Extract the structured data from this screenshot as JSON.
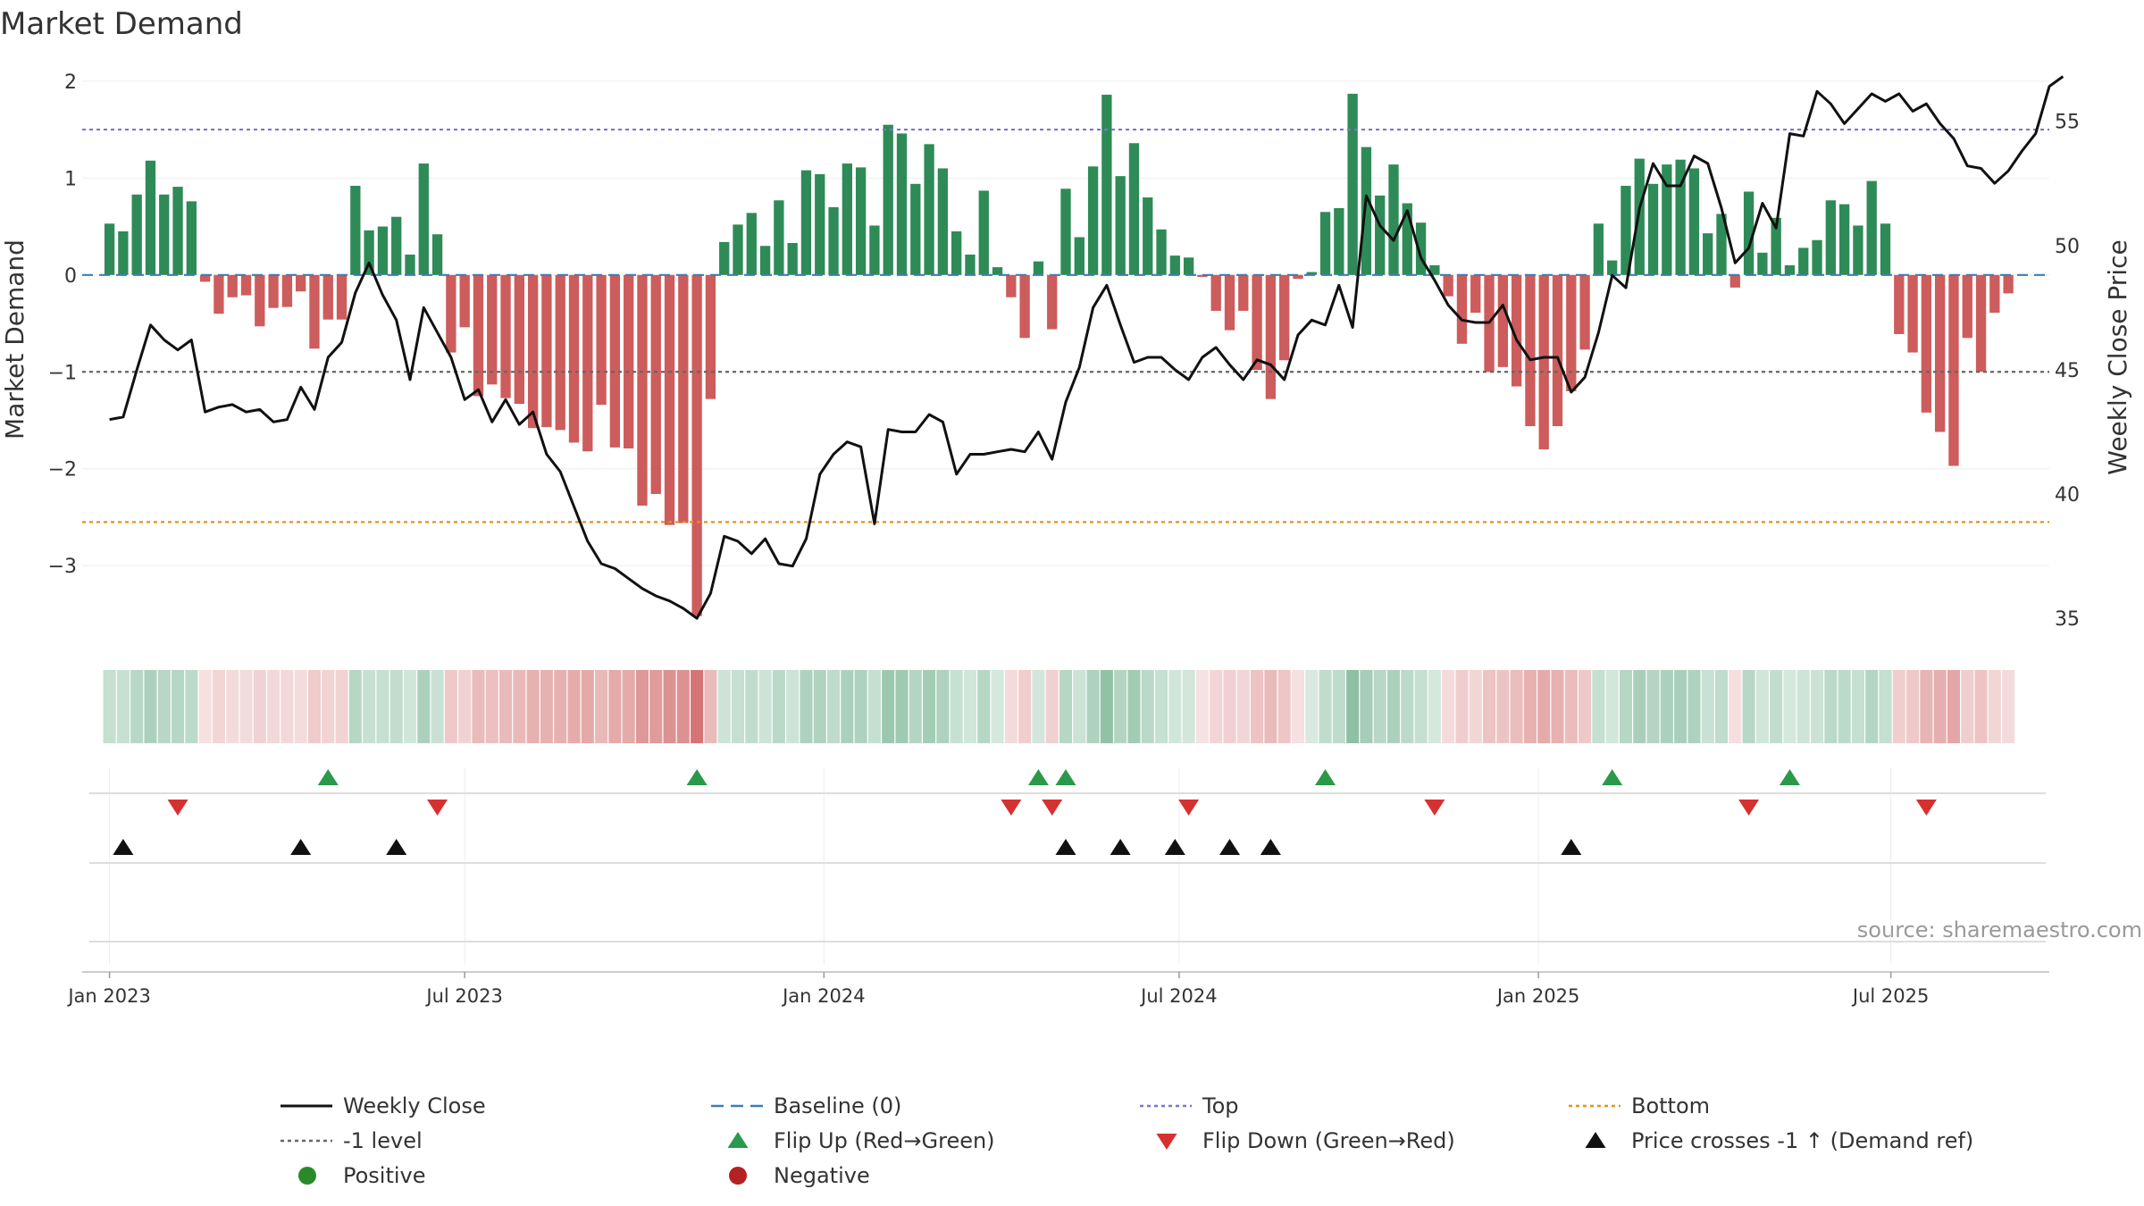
{
  "chart_data": {
    "type": "bar+line",
    "title": "Market Demand",
    "ylabel_left": "Market Demand",
    "ylabel_right": "Weekly Close Price",
    "source": "source: sharemaestro.com",
    "ylim_left": [
      -3.8,
      2.1
    ],
    "ylim_right": [
      34,
      57
    ],
    "yticks_left": [
      {
        "v": 2,
        "label": "2"
      },
      {
        "v": 1,
        "label": "1"
      },
      {
        "v": 0,
        "label": "0"
      },
      {
        "v": -1,
        "label": "−1"
      },
      {
        "v": -2,
        "label": "−2"
      },
      {
        "v": -3,
        "label": "−3"
      }
    ],
    "yticks_right": [
      {
        "v": 35,
        "label": "35"
      },
      {
        "v": 40,
        "label": "40"
      },
      {
        "v": 45,
        "label": "45"
      },
      {
        "v": 50,
        "label": "50"
      },
      {
        "v": 55,
        "label": "55"
      }
    ],
    "x_range_weeks": [
      -2,
      142
    ],
    "xticks": [
      {
        "week": 0,
        "label": "Jan 2023"
      },
      {
        "week": 26,
        "label": "Jul 2023"
      },
      {
        "week": 52.3,
        "label": "Jan 2024"
      },
      {
        "week": 78.3,
        "label": "Jul 2024"
      },
      {
        "week": 104.6,
        "label": "Jan 2025"
      },
      {
        "week": 130.4,
        "label": "Jul 2025"
      }
    ],
    "reference_lines": {
      "top": 1.5,
      "bottom": -2.55,
      "minus_one_level": -1,
      "baseline": 0
    },
    "demand": [
      0.53,
      0.45,
      0.83,
      1.18,
      0.83,
      0.91,
      0.76,
      -0.07,
      -0.4,
      -0.23,
      -0.21,
      -0.53,
      -0.34,
      -0.33,
      -0.17,
      -0.76,
      -0.46,
      -0.46,
      0.92,
      0.46,
      0.5,
      0.6,
      0.21,
      1.15,
      0.42,
      -0.8,
      -0.54,
      -1.25,
      -1.13,
      -1.27,
      -1.33,
      -1.58,
      -1.57,
      -1.6,
      -1.73,
      -1.82,
      -1.34,
      -1.78,
      -1.79,
      -2.38,
      -2.26,
      -2.58,
      -2.56,
      -3.52,
      -1.28,
      0.34,
      0.52,
      0.64,
      0.3,
      0.77,
      0.33,
      1.08,
      1.04,
      0.7,
      1.15,
      1.11,
      0.51,
      1.55,
      1.46,
      0.94,
      1.35,
      1.1,
      0.45,
      0.21,
      0.87,
      0.08,
      -0.23,
      -0.65,
      0.14,
      -0.56,
      0.89,
      0.39,
      1.12,
      1.86,
      1.02,
      1.36,
      0.8,
      0.47,
      0.2,
      0.18,
      -0.02,
      -0.37,
      -0.57,
      -0.37,
      -0.98,
      -1.28,
      -0.88,
      -0.04,
      0.03,
      0.65,
      0.69,
      1.87,
      1.32,
      0.82,
      1.14,
      0.74,
      0.54,
      0.1,
      -0.22,
      -0.71,
      -0.39,
      -1.0,
      -0.95,
      -1.15,
      -1.56,
      -1.8,
      -1.56,
      -1.2,
      -0.77,
      0.53,
      0.15,
      0.92,
      1.2,
      0.94,
      1.14,
      1.19,
      1.1,
      0.43,
      0.63,
      -0.13,
      0.86,
      0.23,
      0.59,
      0.1,
      0.28,
      0.36,
      0.77,
      0.73,
      0.51,
      0.97,
      0.53,
      -0.61,
      -0.8,
      -1.42,
      -1.62,
      -1.97,
      -0.65,
      -1.0,
      -0.39,
      -0.19
    ],
    "weekly_close": [
      43.0,
      43.1,
      45.0,
      46.8,
      46.2,
      45.8,
      46.2,
      43.3,
      43.5,
      43.6,
      43.3,
      43.4,
      42.9,
      43.0,
      44.3,
      43.4,
      45.5,
      46.1,
      48.1,
      49.3,
      48.0,
      47.0,
      44.6,
      47.5,
      46.5,
      45.5,
      43.8,
      44.2,
      42.9,
      43.8,
      42.8,
      43.3,
      41.6,
      40.9,
      39.5,
      38.1,
      37.2,
      37.0,
      36.6,
      36.2,
      35.9,
      35.7,
      35.4,
      35.0,
      36.0,
      38.3,
      38.1,
      37.6,
      38.2,
      37.2,
      37.1,
      38.2,
      40.8,
      41.6,
      42.1,
      41.9,
      38.8,
      42.6,
      42.5,
      42.5,
      43.2,
      42.9,
      40.8,
      41.6,
      41.6,
      41.7,
      41.8,
      41.7,
      42.5,
      41.4,
      43.7,
      45.1,
      47.5,
      48.4,
      46.8,
      45.3,
      45.5,
      45.5,
      45.0,
      44.6,
      45.5,
      45.9,
      45.2,
      44.6,
      45.4,
      45.2,
      44.6,
      46.4,
      47.0,
      46.8,
      48.4,
      46.7,
      52.0,
      50.8,
      50.2,
      51.4,
      49.5,
      48.6,
      47.6,
      47.0,
      46.9,
      46.9,
      47.6,
      46.2,
      45.4,
      45.5,
      45.5,
      44.1,
      44.7,
      46.5,
      48.8,
      48.3,
      51.5,
      53.3,
      52.4,
      52.4,
      53.6,
      53.3,
      51.5,
      49.3,
      49.9,
      51.7,
      50.7,
      54.5,
      54.4,
      56.2,
      55.7,
      54.9,
      55.5,
      56.1,
      55.8,
      56.1,
      55.4,
      55.7,
      54.9,
      54.3,
      53.2,
      53.1,
      52.5,
      53.0,
      53.8,
      54.5,
      56.4,
      56.8
    ],
    "flip_up_weeks": [
      16,
      43,
      68,
      70,
      89,
      110,
      123
    ],
    "flip_down_weeks": [
      5,
      24,
      66,
      69,
      79,
      97,
      120,
      133
    ],
    "price_cross_weeks": [
      1,
      14,
      21,
      70,
      74,
      78,
      82,
      85,
      107
    ],
    "colors": {
      "positive_bar": "#2e8b57",
      "negative_bar": "#cd5c5c",
      "line": "#111111",
      "top": "#7777cc",
      "bottom": "#e8901c",
      "minus_one": "#666666",
      "baseline": "#3a7fb5",
      "flip_up": "#2a9a4a",
      "flip_down": "#d63030",
      "cross": "#111111",
      "positive_dot": "#2a8a2a",
      "negative_dot": "#b22222"
    },
    "legend": [
      {
        "label": "Weekly Close",
        "symbol": "solid-line"
      },
      {
        "label": "Baseline (0)",
        "symbol": "dash-line"
      },
      {
        "label": "Top",
        "symbol": "dot-line-top"
      },
      {
        "label": "Bottom",
        "symbol": "dot-line-bottom"
      },
      {
        "label": "-1 level",
        "symbol": "dot-line-minus1"
      },
      {
        "label": "Flip Up (Red→Green)",
        "symbol": "triangle-up-green"
      },
      {
        "label": "Flip Down (Green→Red)",
        "symbol": "triangle-down-red"
      },
      {
        "label": "Price crosses -1 ↑ (Demand ref)",
        "symbol": "triangle-up-black"
      },
      {
        "label": "Positive",
        "symbol": "dot-green"
      },
      {
        "label": "Negative",
        "symbol": "dot-red"
      }
    ]
  }
}
